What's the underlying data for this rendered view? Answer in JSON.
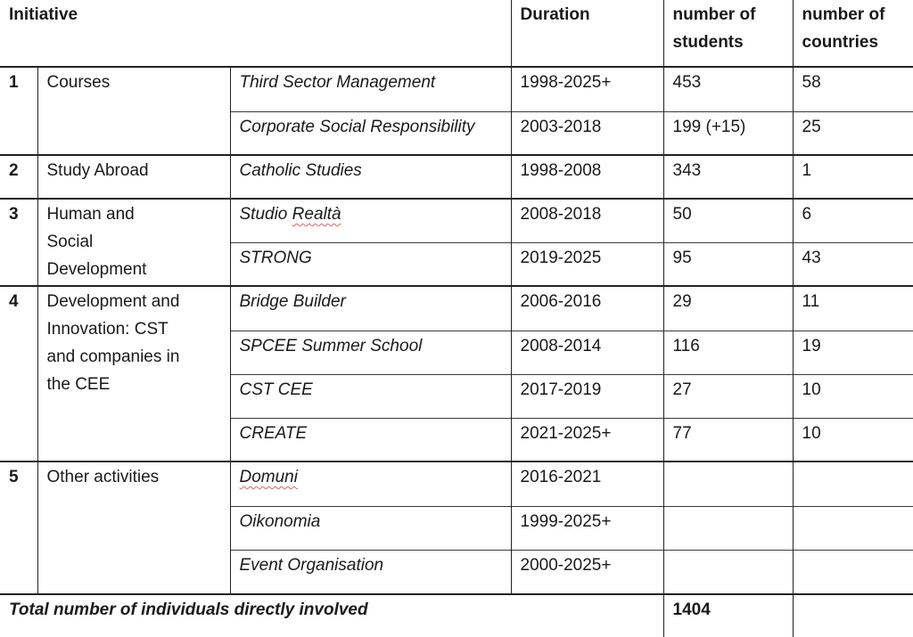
{
  "table": {
    "header": {
      "initiative": "Initiative",
      "duration": "Duration",
      "students": "number of students",
      "countries": "number of countries"
    },
    "groups": [
      {
        "num": "1",
        "category": "Courses",
        "items": [
          {
            "name": "Third Sector Management",
            "err": "",
            "duration": "1998-2025+",
            "students": "453",
            "countries": "58"
          },
          {
            "name": "Corporate Social Responsibility",
            "err": "",
            "duration": "2003-2018",
            "students": "199 (+15)",
            "countries": "25"
          }
        ]
      },
      {
        "num": "2",
        "category": "Study Abroad",
        "items": [
          {
            "name": "Catholic Studies",
            "err": "",
            "duration": "1998-2008",
            "students": "343",
            "countries": "1"
          }
        ]
      },
      {
        "num": "3",
        "category": "Human and Social Development",
        "items": [
          {
            "name": "Studio ",
            "err": "Realtà",
            "duration": "2008-2018",
            "students": "50",
            "countries": "6"
          },
          {
            "name": "STRONG",
            "err": "",
            "duration": "2019-2025",
            "students": "95",
            "countries": "43"
          }
        ]
      },
      {
        "num": "4",
        "category": "Development and Innovation: CST and companies in the CEE",
        "items": [
          {
            "name": "Bridge Builder",
            "err": "",
            "duration": "2006-2016",
            "students": "29",
            "countries": "11"
          },
          {
            "name": "SPCEE Summer School",
            "err": "",
            "duration": "2008-2014",
            "students": "116",
            "countries": "19"
          },
          {
            "name": "CST CEE",
            "err": "",
            "duration": "2017-2019",
            "students": "27",
            "countries": "10"
          },
          {
            "name": "CREATE",
            "err": "",
            "duration": "2021-2025+",
            "students": "77",
            "countries": "10"
          }
        ]
      },
      {
        "num": "5",
        "category": "Other activities",
        "items": [
          {
            "name": "",
            "err": "Domuni",
            "duration": "2016-2021",
            "students": "",
            "countries": ""
          },
          {
            "name": "Oikonomia",
            "err": "",
            "duration": "1999-2025+",
            "students": "",
            "countries": ""
          },
          {
            "name": "Event Organisation",
            "err": "",
            "duration": "2000-2025+",
            "students": "",
            "countries": ""
          }
        ]
      }
    ],
    "total": {
      "label": "Total number of individuals directly involved",
      "students": "1404",
      "countries": ""
    }
  }
}
